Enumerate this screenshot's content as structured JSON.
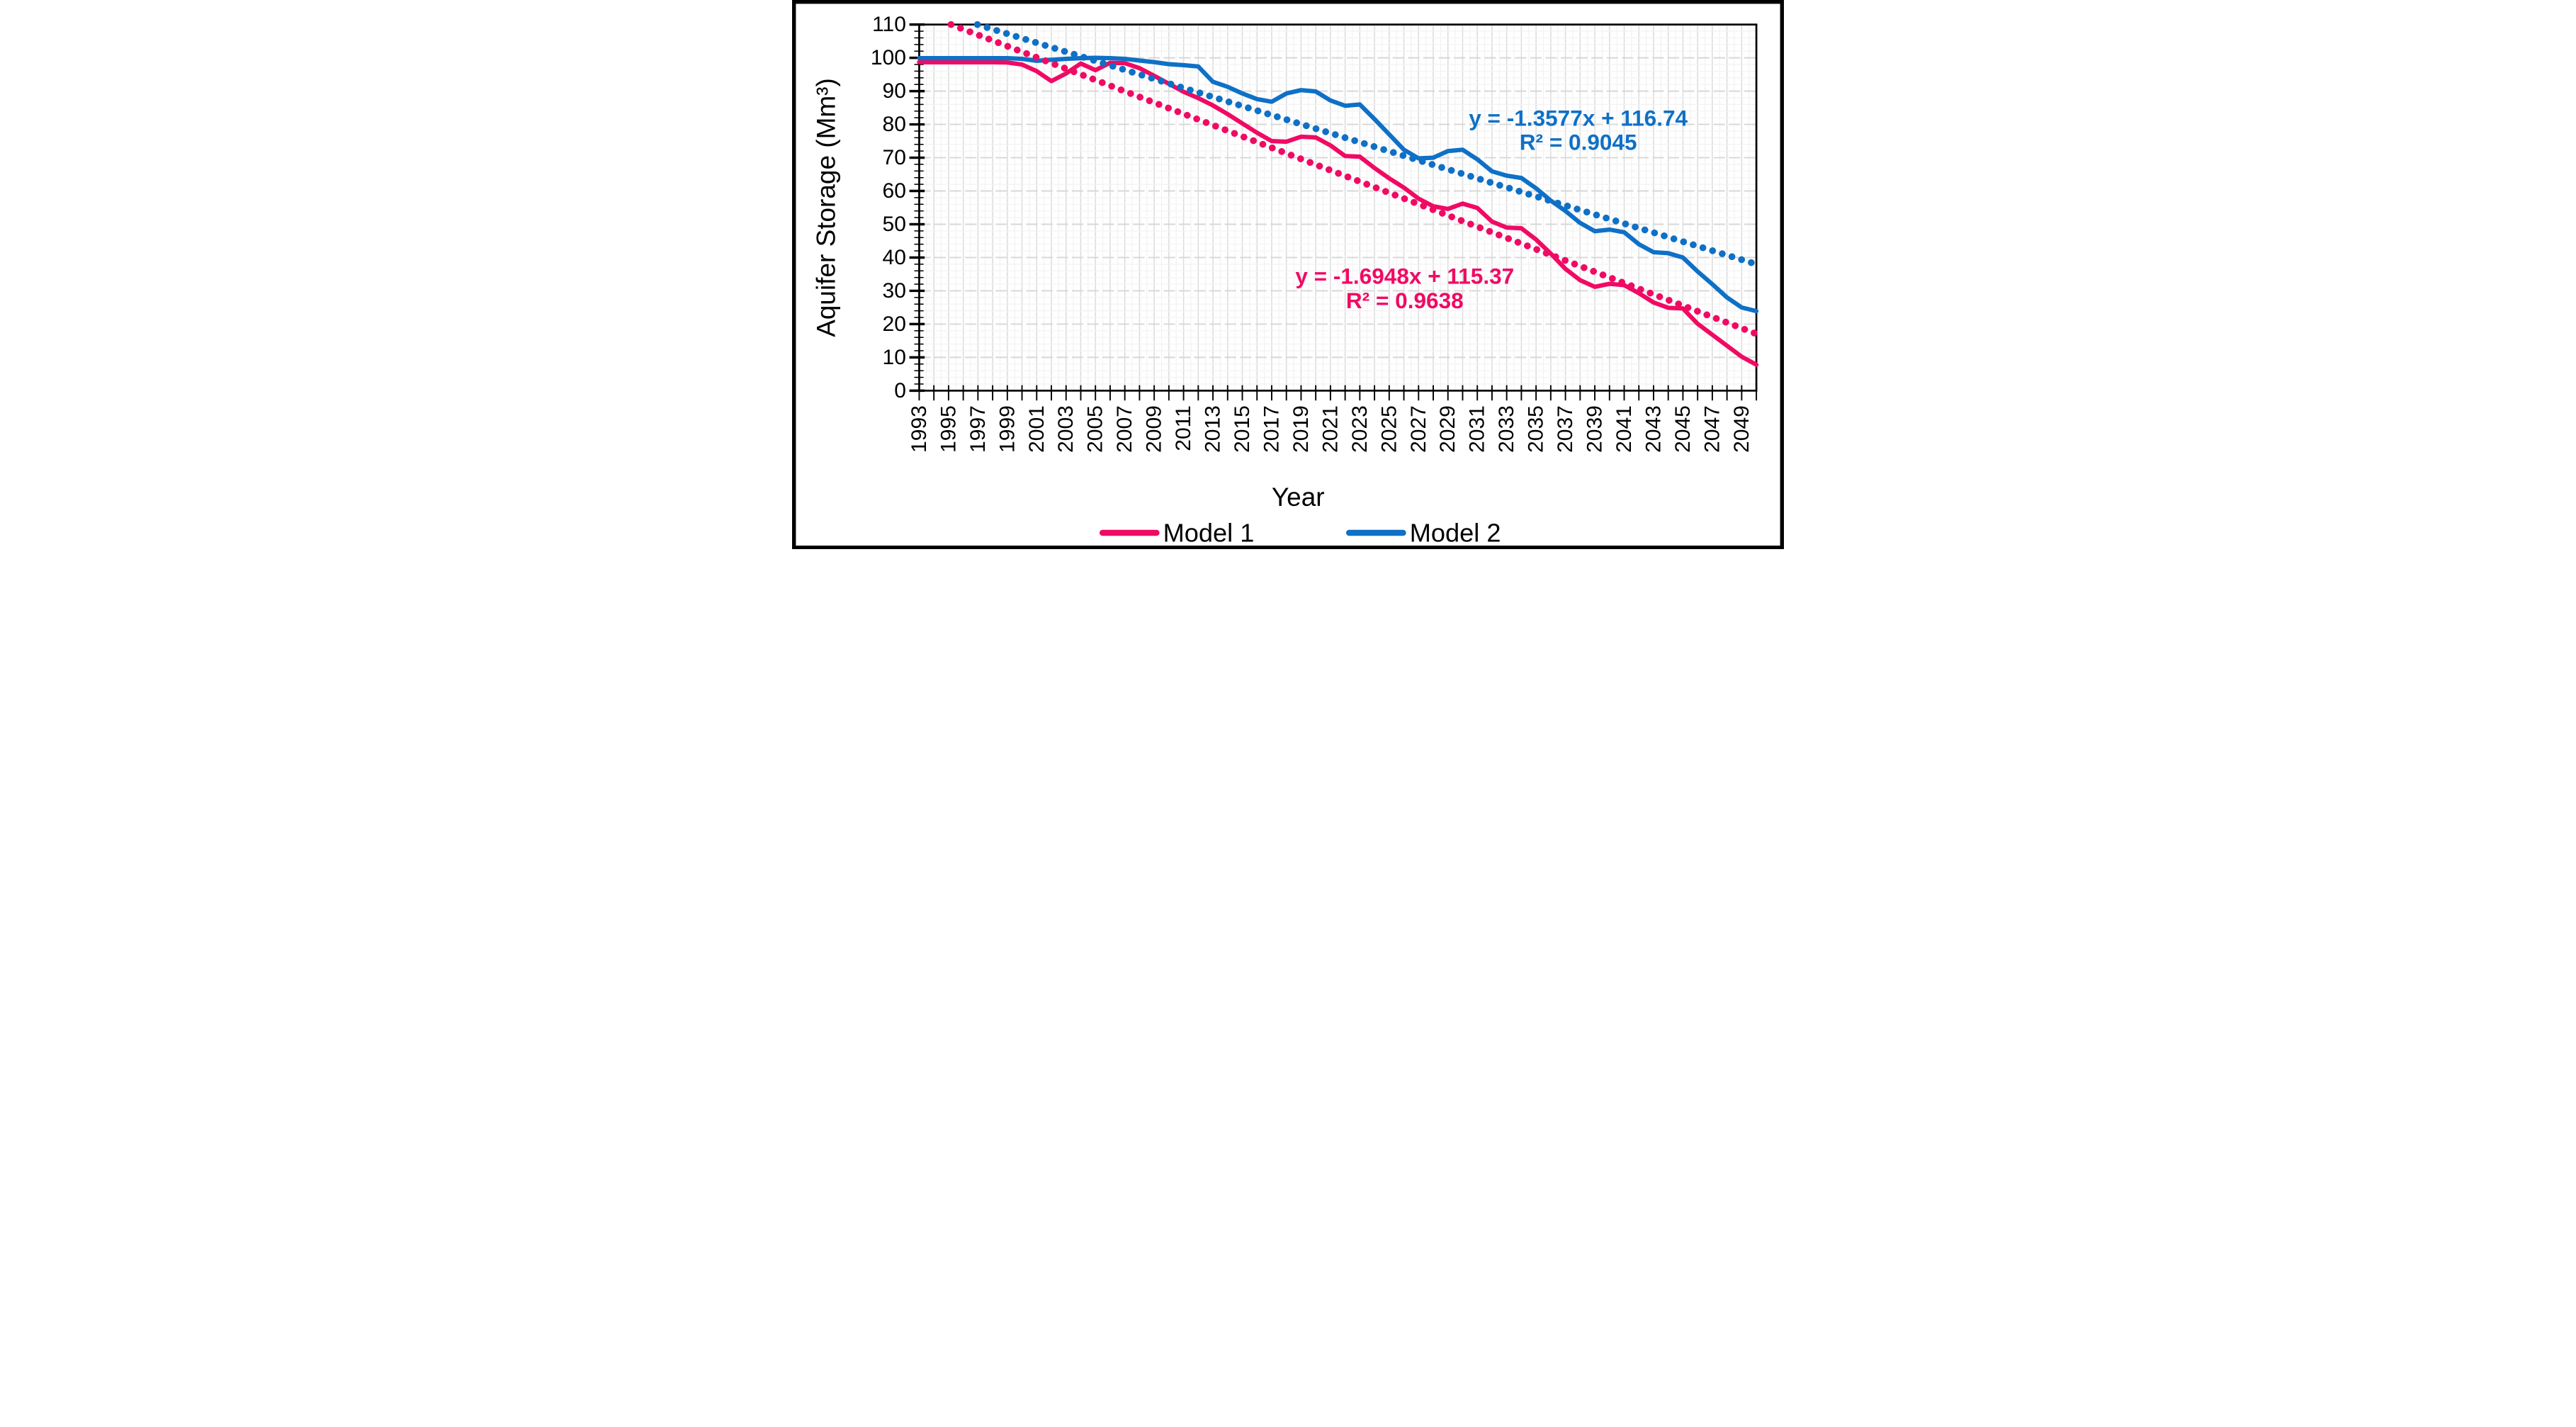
{
  "chart_data": {
    "type": "line",
    "title": "",
    "xlabel": "Year",
    "ylabel": "Aquifer Storage (Mm³)",
    "grid": true,
    "legend_position": "bottom",
    "x_axis": {
      "min": 1993,
      "max": 2050,
      "tick_step": 1,
      "label_step": 2,
      "labels": [
        1993,
        1995,
        1997,
        1999,
        2001,
        2003,
        2005,
        2007,
        2009,
        2011,
        2013,
        2015,
        2017,
        2019,
        2021,
        2023,
        2025,
        2027,
        2029,
        2031,
        2033,
        2035,
        2037,
        2039,
        2041,
        2043,
        2045,
        2047,
        2049
      ]
    },
    "y_axis": {
      "min": 0,
      "max": 110,
      "minor_step": 2,
      "label_step": 10,
      "labels": [
        0,
        10,
        20,
        30,
        40,
        50,
        60,
        70,
        80,
        90,
        100,
        110
      ]
    },
    "years": [
      1993,
      1994,
      1995,
      1996,
      1997,
      1998,
      1999,
      2000,
      2001,
      2002,
      2003,
      2004,
      2005,
      2006,
      2007,
      2008,
      2009,
      2010,
      2011,
      2012,
      2013,
      2014,
      2015,
      2016,
      2017,
      2018,
      2019,
      2020,
      2021,
      2022,
      2023,
      2024,
      2025,
      2026,
      2027,
      2028,
      2029,
      2030,
      2031,
      2032,
      2033,
      2034,
      2035,
      2036,
      2037,
      2038,
      2039,
      2040,
      2041,
      2042,
      2043,
      2044,
      2045,
      2046,
      2047,
      2048,
      2049,
      2050
    ],
    "series": [
      {
        "name": "Model 1",
        "color": "#F00A64",
        "style": "solid",
        "values": [
          98.7,
          98.7,
          98.7,
          98.7,
          98.7,
          98.7,
          98.6,
          98.0,
          96.0,
          93.0,
          95.3,
          98.3,
          96.3,
          98.5,
          98.4,
          96.9,
          94.6,
          92.2,
          89.8,
          87.9,
          85.7,
          83.1,
          80.3,
          77.5,
          75.0,
          74.8,
          76.3,
          76.1,
          73.7,
          70.5,
          70.3,
          66.9,
          63.8,
          61.0,
          57.7,
          55.4,
          54.6,
          56.2,
          54.9,
          50.8,
          49.0,
          48.8,
          45.4,
          41.2,
          36.6,
          33.2,
          31.2,
          32.1,
          31.7,
          29.3,
          26.5,
          24.9,
          24.7,
          20.1,
          16.8,
          13.5,
          10.2,
          7.8
        ]
      },
      {
        "name": "Model 2",
        "color": "#0E70C6",
        "style": "solid",
        "values": [
          99.9,
          99.9,
          99.9,
          99.9,
          99.9,
          99.9,
          99.9,
          99.7,
          99.1,
          99.4,
          99.7,
          99.9,
          100.0,
          99.9,
          99.7,
          99.2,
          98.7,
          98.1,
          97.8,
          97.4,
          92.8,
          91.3,
          89.3,
          87.6,
          86.8,
          89.3,
          90.3,
          89.9,
          87.2,
          85.6,
          86.0,
          81.6,
          77.0,
          72.4,
          69.8,
          70.0,
          72.0,
          72.4,
          69.5,
          65.9,
          64.6,
          63.9,
          60.8,
          57.1,
          54.0,
          50.4,
          47.9,
          48.4,
          47.6,
          44.0,
          41.6,
          41.3,
          40.0,
          35.8,
          32.0,
          28.0,
          25.0,
          23.9
        ]
      }
    ],
    "trendlines": [
      {
        "for": "Model 1",
        "style": "dotted",
        "color": "#F00A64",
        "slope": -1.6948,
        "intercept": 115.37,
        "x_index_origin_year": 1992
      },
      {
        "for": "Model 2",
        "style": "dotted",
        "color": "#0E70C6",
        "slope": -1.3577,
        "intercept": 116.74,
        "x_index_origin_year": 1992
      }
    ]
  },
  "annotations": {
    "model2_equation": "y = -1.3577x + 116.74",
    "model2_r2": "R² = 0.9045",
    "model1_equation": "y = -1.6948x + 115.37",
    "model1_r2": "R² = 0.9638"
  },
  "axes_labels": {
    "x": "Year",
    "y": "Aquifer Storage (Mm³)"
  },
  "legend": {
    "items": [
      {
        "label": "Model 1",
        "color": "#F00A64"
      },
      {
        "label": "Model 2",
        "color": "#0E70C6"
      }
    ]
  }
}
